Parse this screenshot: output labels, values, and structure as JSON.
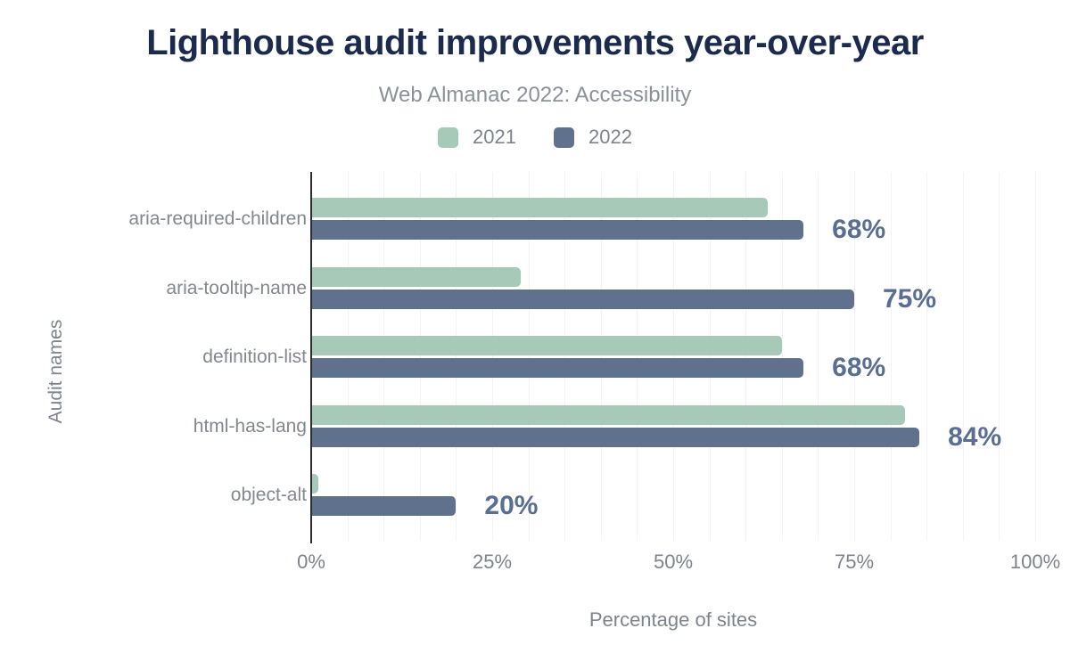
{
  "title": "Lighthouse audit improvements year-over-year",
  "subtitle": "Web Almanac 2022: Accessibility",
  "legend": [
    {
      "label": "2021",
      "color": "#a6c9b8"
    },
    {
      "label": "2022",
      "color": "#5f718d"
    }
  ],
  "chart_data": {
    "type": "bar",
    "orientation": "horizontal",
    "title": "Lighthouse audit improvements year-over-year",
    "subtitle": "Web Almanac 2022: Accessibility",
    "categories": [
      "aria-required-children",
      "aria-tooltip-name",
      "definition-list",
      "html-has-lang",
      "object-alt"
    ],
    "series": [
      {
        "name": "2021",
        "color": "#a6c9b8",
        "values": [
          63,
          29,
          65,
          82,
          1
        ]
      },
      {
        "name": "2022",
        "color": "#5f718d",
        "values": [
          68,
          75,
          68,
          84,
          20
        ]
      }
    ],
    "data_labels": [
      "68%",
      "75%",
      "68%",
      "84%",
      "20%"
    ],
    "xlabel": "Percentage of sites",
    "ylabel": "Audit names",
    "xlim": [
      0,
      100
    ],
    "xticks": [
      "0%",
      "25%",
      "50%",
      "75%",
      "100%"
    ],
    "xtick_values": [
      0,
      25,
      50,
      75,
      100
    ],
    "minor_grid_step": 5,
    "legend_position": "top center",
    "grid": "vertical minor gridlines"
  },
  "colors": {
    "title": "#1c2b4d",
    "subtitle": "#8a9199",
    "axis_text": "#7d848b",
    "data_label": "#5a6e92",
    "axis_line": "#2e2e2e",
    "gridline": "#f1f3f4",
    "background": "#ffffff"
  }
}
